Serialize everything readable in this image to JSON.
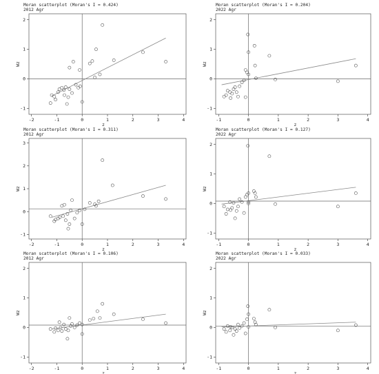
{
  "chart_data": [
    {
      "type": "scatter",
      "title": "Moran scatterplot (Moran's I = 0.424)",
      "subtitle": "2012 Agr",
      "xlabel": "z",
      "ylabel": "Wz",
      "xlim": [
        -2.1,
        4.1
      ],
      "ylim": [
        -1.2,
        2.2
      ],
      "xticks": [
        "-2",
        "-1",
        "0",
        "1",
        "2",
        "3",
        "4"
      ],
      "yticks": [
        "-1",
        "0",
        "1",
        "2"
      ],
      "hline": 0,
      "vline": 0,
      "fit_line": {
        "x": [
          -1.2,
          3.3
        ],
        "y": [
          -0.58,
          1.38
        ]
      },
      "points": [
        {
          "x": -1.25,
          "y": -0.82
        },
        {
          "x": -1.1,
          "y": -0.6
        },
        {
          "x": -1.05,
          "y": -0.7
        },
        {
          "x": -0.95,
          "y": -0.45
        },
        {
          "x": -0.9,
          "y": -0.35
        },
        {
          "x": -0.8,
          "y": -0.3
        },
        {
          "x": -0.72,
          "y": -0.38
        },
        {
          "x": -0.7,
          "y": -0.55
        },
        {
          "x": -0.65,
          "y": -0.28
        },
        {
          "x": -0.55,
          "y": -0.62
        },
        {
          "x": -0.5,
          "y": -0.35
        },
        {
          "x": -0.5,
          "y": 0.38
        },
        {
          "x": -0.4,
          "y": -0.48
        },
        {
          "x": -0.35,
          "y": 0.58
        },
        {
          "x": -0.25,
          "y": -0.2
        },
        {
          "x": -0.15,
          "y": -0.3
        },
        {
          "x": -0.1,
          "y": 0.3
        },
        {
          "x": -0.08,
          "y": -0.25
        },
        {
          "x": 0.0,
          "y": -0.78
        },
        {
          "x": 0.3,
          "y": 0.52
        },
        {
          "x": 0.4,
          "y": 0.6
        },
        {
          "x": 0.5,
          "y": 0.05
        },
        {
          "x": 0.55,
          "y": 1.0
        },
        {
          "x": 0.7,
          "y": 0.15
        },
        {
          "x": 0.8,
          "y": 1.82
        },
        {
          "x": 1.25,
          "y": 0.63
        },
        {
          "x": 2.4,
          "y": 0.9
        },
        {
          "x": 3.3,
          "y": 0.58
        },
        {
          "x": -0.6,
          "y": -0.85
        },
        {
          "x": -1.2,
          "y": -0.55
        }
      ]
    },
    {
      "type": "scatter",
      "title": "Moran scatterplot (Moran's I = 0.204)",
      "subtitle": "2022 Agr",
      "xlabel": "z",
      "ylabel": "Wz",
      "xlim": [
        -1.1,
        4.1
      ],
      "ylim": [
        -1.2,
        2.2
      ],
      "xticks": [
        "-1",
        "0",
        "1",
        "2",
        "3",
        "4"
      ],
      "yticks": [
        "-1",
        "0",
        "1",
        "2"
      ],
      "hline": 0,
      "vline": 0,
      "fit_line": {
        "x": [
          -0.9,
          3.6
        ],
        "y": [
          -0.2,
          0.68
        ]
      },
      "points": [
        {
          "x": -0.82,
          "y": -0.6
        },
        {
          "x": -0.75,
          "y": -0.55
        },
        {
          "x": -0.7,
          "y": -0.4
        },
        {
          "x": -0.62,
          "y": -0.45
        },
        {
          "x": -0.55,
          "y": -0.5
        },
        {
          "x": -0.5,
          "y": -0.35
        },
        {
          "x": -0.45,
          "y": -0.28
        },
        {
          "x": -0.4,
          "y": -0.45
        },
        {
          "x": -0.35,
          "y": -0.6
        },
        {
          "x": -0.3,
          "y": -0.25
        },
        {
          "x": -0.22,
          "y": -0.12
        },
        {
          "x": -0.15,
          "y": -0.05
        },
        {
          "x": -0.1,
          "y": 0.3
        },
        {
          "x": -0.05,
          "y": 0.22
        },
        {
          "x": -0.1,
          "y": -0.62
        },
        {
          "x": 0.0,
          "y": 0.15
        },
        {
          "x": 0.0,
          "y": 0.9
        },
        {
          "x": -0.02,
          "y": 1.5
        },
        {
          "x": 0.2,
          "y": 1.12
        },
        {
          "x": 0.22,
          "y": 0.45
        },
        {
          "x": 0.25,
          "y": 0.02
        },
        {
          "x": 0.7,
          "y": 0.78
        },
        {
          "x": 0.9,
          "y": -0.02
        },
        {
          "x": 3.0,
          "y": -0.08
        },
        {
          "x": 3.6,
          "y": 0.45
        },
        {
          "x": -0.6,
          "y": -0.65
        }
      ]
    },
    {
      "type": "scatter",
      "title": "Moran scatterplot (Moran's I = 0.311)",
      "subtitle": "2012 Agr",
      "xlabel": "z",
      "ylabel": "Wz",
      "xlim": [
        -2.1,
        4.1
      ],
      "ylim": [
        -1.2,
        3.2
      ],
      "xticks": [
        "-2",
        "-1",
        "0",
        "1",
        "2",
        "3",
        "4"
      ],
      "yticks": [
        "-1",
        "0",
        "1",
        "2",
        "3"
      ],
      "hline": 0.12,
      "vline": 0,
      "fit_line": {
        "x": [
          -1.2,
          3.3
        ],
        "y": [
          -0.25,
          1.15
        ]
      },
      "points": [
        {
          "x": -1.25,
          "y": -0.2
        },
        {
          "x": -1.1,
          "y": -0.42
        },
        {
          "x": -1.05,
          "y": -0.35
        },
        {
          "x": -0.95,
          "y": -0.3
        },
        {
          "x": -0.88,
          "y": -0.25
        },
        {
          "x": -0.8,
          "y": 0.25
        },
        {
          "x": -0.75,
          "y": -0.2
        },
        {
          "x": -0.7,
          "y": 0.3
        },
        {
          "x": -0.65,
          "y": -0.38
        },
        {
          "x": -0.58,
          "y": -0.1
        },
        {
          "x": -0.5,
          "y": -0.55
        },
        {
          "x": -0.45,
          "y": 0.05
        },
        {
          "x": -0.4,
          "y": 0.5
        },
        {
          "x": -0.3,
          "y": -0.3
        },
        {
          "x": -0.2,
          "y": -0.05
        },
        {
          "x": -0.1,
          "y": 0.05
        },
        {
          "x": 0.0,
          "y": -0.55
        },
        {
          "x": 0.1,
          "y": 0.1
        },
        {
          "x": 0.3,
          "y": 0.38
        },
        {
          "x": 0.55,
          "y": 0.25
        },
        {
          "x": 0.65,
          "y": 0.45
        },
        {
          "x": 0.8,
          "y": 2.25
        },
        {
          "x": 1.2,
          "y": 1.15
        },
        {
          "x": 2.4,
          "y": 0.68
        },
        {
          "x": 3.3,
          "y": 0.55
        },
        {
          "x": 0.5,
          "y": 0.32
        },
        {
          "x": -0.55,
          "y": -0.75
        }
      ]
    },
    {
      "type": "scatter",
      "title": "Moran scatterplot (Moran's I = 0.127)",
      "subtitle": "2022 Agr",
      "xlabel": "z",
      "ylabel": "Wz",
      "xlim": [
        -1.1,
        4.1
      ],
      "ylim": [
        -1.2,
        2.2
      ],
      "xticks": [
        "-1",
        "0",
        "1",
        "2",
        "3",
        "4"
      ],
      "yticks": [
        "-1",
        "0",
        "1",
        "2"
      ],
      "hline": 0.08,
      "vline": 0,
      "fit_line": {
        "x": [
          -0.9,
          3.6
        ],
        "y": [
          -0.02,
          0.55
        ]
      },
      "points": [
        {
          "x": -0.82,
          "y": -0.1
        },
        {
          "x": -0.75,
          "y": -0.35
        },
        {
          "x": -0.7,
          "y": -0.2
        },
        {
          "x": -0.62,
          "y": 0.05
        },
        {
          "x": -0.55,
          "y": -0.15
        },
        {
          "x": -0.5,
          "y": 0.02
        },
        {
          "x": -0.45,
          "y": -0.5
        },
        {
          "x": -0.4,
          "y": -0.25
        },
        {
          "x": -0.35,
          "y": -0.1
        },
        {
          "x": -0.3,
          "y": 0.15
        },
        {
          "x": -0.22,
          "y": 0.05
        },
        {
          "x": -0.15,
          "y": -0.32
        },
        {
          "x": -0.1,
          "y": 0.22
        },
        {
          "x": -0.05,
          "y": 0.3
        },
        {
          "x": 0.0,
          "y": 0.0
        },
        {
          "x": 0.0,
          "y": 0.35
        },
        {
          "x": 0.0,
          "y": 0.05
        },
        {
          "x": -0.02,
          "y": 1.95
        },
        {
          "x": 0.18,
          "y": 0.42
        },
        {
          "x": 0.22,
          "y": 0.35
        },
        {
          "x": 0.25,
          "y": 0.22
        },
        {
          "x": 0.7,
          "y": 1.6
        },
        {
          "x": 0.9,
          "y": -0.02
        },
        {
          "x": 3.0,
          "y": -0.1
        },
        {
          "x": 3.6,
          "y": 0.35
        },
        {
          "x": -0.6,
          "y": -0.22
        }
      ]
    },
    {
      "type": "scatter",
      "title": "Moran scatterplot (Moran's I = 0.106)",
      "subtitle": "2012 Agr",
      "xlabel": "z",
      "ylabel": "Wz",
      "xlim": [
        -2.1,
        4.1
      ],
      "ylim": [
        -1.2,
        2.2
      ],
      "xticks": [
        "-2",
        "-1",
        "0",
        "1",
        "2",
        "3",
        "4"
      ],
      "yticks": [
        "-1",
        "0",
        "1",
        "2"
      ],
      "hline": 0.08,
      "vline": 0,
      "fit_line": {
        "x": [
          -1.2,
          3.3
        ],
        "y": [
          -0.05,
          0.45
        ]
      },
      "points": [
        {
          "x": -1.25,
          "y": -0.05
        },
        {
          "x": -1.1,
          "y": -0.15
        },
        {
          "x": -1.05,
          "y": -0.02
        },
        {
          "x": -0.95,
          "y": -0.1
        },
        {
          "x": -0.9,
          "y": 0.18
        },
        {
          "x": -0.85,
          "y": 0.0
        },
        {
          "x": -0.8,
          "y": -0.12
        },
        {
          "x": -0.72,
          "y": 0.1
        },
        {
          "x": -0.65,
          "y": -0.05
        },
        {
          "x": -0.58,
          "y": -0.38
        },
        {
          "x": -0.5,
          "y": 0.32
        },
        {
          "x": -0.45,
          "y": 0.05
        },
        {
          "x": -0.4,
          "y": 0.12
        },
        {
          "x": -0.3,
          "y": 0.0
        },
        {
          "x": -0.2,
          "y": 0.08
        },
        {
          "x": -0.1,
          "y": 0.15
        },
        {
          "x": 0.0,
          "y": -0.22
        },
        {
          "x": 0.0,
          "y": 0.1
        },
        {
          "x": 0.3,
          "y": 0.25
        },
        {
          "x": 0.45,
          "y": 0.3
        },
        {
          "x": 0.6,
          "y": 0.55
        },
        {
          "x": 0.7,
          "y": 0.32
        },
        {
          "x": 0.8,
          "y": 0.8
        },
        {
          "x": 1.25,
          "y": 0.45
        },
        {
          "x": 2.4,
          "y": 0.28
        },
        {
          "x": 3.3,
          "y": 0.15
        },
        {
          "x": -0.55,
          "y": -0.1
        }
      ]
    },
    {
      "type": "scatter",
      "title": "Moran scatterplot (Moran's I = 0.033)",
      "subtitle": "2022 Agr",
      "xlabel": "z",
      "ylabel": "Wz",
      "xlim": [
        -1.1,
        4.1
      ],
      "ylim": [
        -1.2,
        2.2
      ],
      "xticks": [
        "-1",
        "0",
        "1",
        "2",
        "3",
        "4"
      ],
      "yticks": [
        "-1",
        "0",
        "1",
        "2"
      ],
      "hline": 0.05,
      "vline": 0,
      "fit_line": {
        "x": [
          -0.9,
          3.6
        ],
        "y": [
          0.02,
          0.18
        ]
      },
      "points": [
        {
          "x": -0.82,
          "y": -0.05
        },
        {
          "x": -0.75,
          "y": -0.15
        },
        {
          "x": -0.7,
          "y": 0.05
        },
        {
          "x": -0.62,
          "y": -0.1
        },
        {
          "x": -0.55,
          "y": 0.0
        },
        {
          "x": -0.5,
          "y": -0.25
        },
        {
          "x": -0.45,
          "y": -0.05
        },
        {
          "x": -0.4,
          "y": -0.12
        },
        {
          "x": -0.35,
          "y": 0.1
        },
        {
          "x": -0.3,
          "y": -0.02
        },
        {
          "x": -0.22,
          "y": 0.05
        },
        {
          "x": -0.15,
          "y": 0.15
        },
        {
          "x": -0.1,
          "y": -0.2
        },
        {
          "x": -0.05,
          "y": 0.28
        },
        {
          "x": 0.0,
          "y": 0.02
        },
        {
          "x": 0.0,
          "y": 0.45
        },
        {
          "x": -0.02,
          "y": 0.72
        },
        {
          "x": 0.18,
          "y": 0.3
        },
        {
          "x": 0.22,
          "y": 0.18
        },
        {
          "x": 0.25,
          "y": 0.1
        },
        {
          "x": 0.7,
          "y": 0.6
        },
        {
          "x": 0.9,
          "y": 0.0
        },
        {
          "x": 3.0,
          "y": -0.1
        },
        {
          "x": 3.6,
          "y": 0.08
        },
        {
          "x": -0.6,
          "y": 0.02
        }
      ]
    }
  ],
  "colors": {
    "frame": "#555555",
    "axis": "#333333",
    "point": "#555555",
    "reference_line": "#666666",
    "fit_line": "#888888",
    "text": "#222222"
  }
}
